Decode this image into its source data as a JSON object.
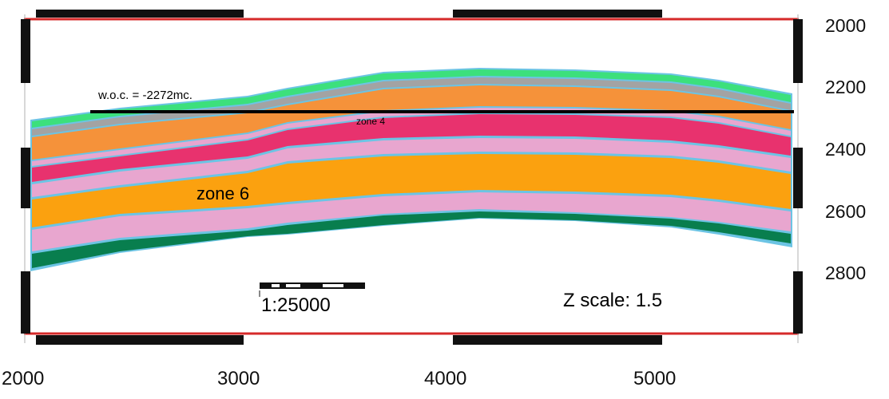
{
  "colors": {
    "frame_red": "#d62a2a",
    "frame_black": "#111111",
    "layer_outline": "#6cc4e4",
    "layer_top_green": "#3ce07c",
    "layer_gray": "#a3a3a3",
    "layer_orange": "#f5923a",
    "layer_pink": "#e8a6cf",
    "layer_magenta": "#e8326e",
    "layer_amber": "#fba10f",
    "layer_dark_green": "#087e4e",
    "woc_line": "#000000"
  },
  "annotations": {
    "woc": "w.o.c. = -2272mc.",
    "zone4": "zone 4",
    "zone6": "zone 6",
    "scale_ratio": "1:25000",
    "z_scale": "Z scale: 1.5"
  },
  "axes": {
    "y_ticks": [
      "2000",
      "2200",
      "2400",
      "2600",
      "2800"
    ],
    "x_ticks": [
      "2000",
      "3000",
      "4000",
      "5000"
    ]
  }
}
